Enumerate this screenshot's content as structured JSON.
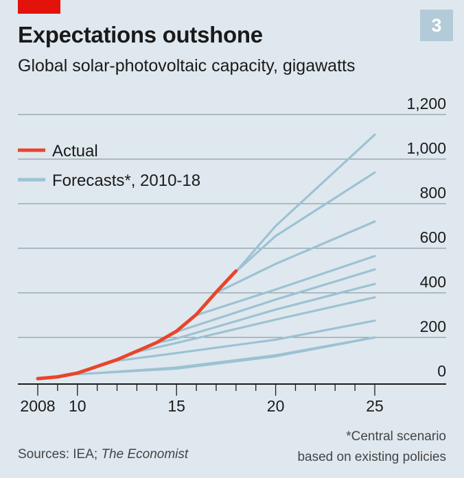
{
  "header": {
    "title": "Expectations outshone",
    "subtitle": "Global solar-photovoltaic capacity, gigawatts",
    "badge": "3"
  },
  "colors": {
    "background": "#dfe8ee",
    "actual": "#e8452c",
    "forecast": "#9cc2d3",
    "brand_tag": "#e3120b",
    "badge": "#b3cad8"
  },
  "chart_data": {
    "type": "line",
    "xlim": [
      2008,
      2025
    ],
    "ylim": [
      0,
      1200
    ],
    "y_ticks": [
      0,
      200,
      400,
      600,
      800,
      1000,
      1200
    ],
    "y_tick_labels": [
      "0",
      "200",
      "400",
      "600",
      "800",
      "1,000",
      "1,200"
    ],
    "x_ticks": [
      2008,
      2010,
      2015,
      2020,
      2025
    ],
    "x_tick_labels": [
      "2008",
      "10",
      "15",
      "20",
      "25"
    ],
    "grid": "horizontal",
    "y_axis_position": "right",
    "legend_position": "top-left",
    "legend": [
      {
        "key": "actual",
        "label": "Actual"
      },
      {
        "key": "forecast",
        "label": "Forecasts*, 2010-18"
      }
    ],
    "series": [
      {
        "name": "Actual",
        "key": "actual",
        "x": [
          2008,
          2009,
          2010,
          2011,
          2012,
          2013,
          2014,
          2015,
          2016,
          2017,
          2018
        ],
        "y": [
          15,
          23,
          40,
          70,
          100,
          138,
          177,
          228,
          303,
          403,
          498
        ]
      },
      {
        "key": "forecast",
        "x": [
          2010,
          2015,
          2020,
          2025
        ],
        "y": [
          35,
          60,
          115,
          200
        ]
      },
      {
        "key": "forecast",
        "x": [
          2011,
          2015,
          2020,
          2025
        ],
        "y": [
          40,
          65,
          120,
          200
        ]
      },
      {
        "key": "forecast",
        "x": [
          2012,
          2015,
          2020,
          2025
        ],
        "y": [
          95,
          130,
          190,
          275
        ]
      },
      {
        "key": "forecast",
        "x": [
          2013,
          2015,
          2020,
          2025
        ],
        "y": [
          135,
          175,
          280,
          380
        ]
      },
      {
        "key": "forecast",
        "x": [
          2014,
          2015,
          2020,
          2025
        ],
        "y": [
          175,
          195,
          325,
          440
        ]
      },
      {
        "key": "forecast",
        "x": [
          2015,
          2020,
          2025
        ],
        "y": [
          225,
          370,
          505
        ]
      },
      {
        "key": "forecast",
        "x": [
          2016,
          2020,
          2025
        ],
        "y": [
          300,
          415,
          565
        ]
      },
      {
        "key": "forecast",
        "x": [
          2017,
          2020,
          2025
        ],
        "y": [
          400,
          530,
          720
        ]
      },
      {
        "key": "forecast",
        "x": [
          2018,
          2020,
          2025
        ],
        "y": [
          495,
          655,
          940
        ]
      },
      {
        "key": "forecast",
        "x": [
          2018,
          2020,
          2025
        ],
        "y": [
          495,
          700,
          1110
        ]
      }
    ]
  },
  "footer": {
    "source_prefix": "Sources: IEA;",
    "source_italic": "The Economist",
    "footnote_line1": "*Central scenario",
    "footnote_line2": "based on existing policies"
  }
}
